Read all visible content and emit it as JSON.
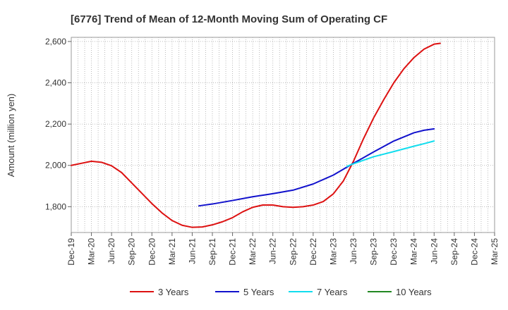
{
  "chart_data": {
    "type": "line",
    "title": "[6776]  Trend of Mean of 12-Month Moving Sum of Operating CF",
    "xlabel": "",
    "ylabel": "Amount (million yen)",
    "ylim": [
      1675,
      2620
    ],
    "yticks": [
      1800,
      2000,
      2200,
      2400,
      2600
    ],
    "ytick_labels": [
      "1,800",
      "2,000",
      "2,200",
      "2,400",
      "2,600"
    ],
    "x_categories": [
      "Dec-19",
      "Mar-20",
      "Jun-20",
      "Sep-20",
      "Dec-20",
      "Mar-21",
      "Jun-21",
      "Sep-21",
      "Dec-21",
      "Mar-22",
      "Jun-22",
      "Sep-22",
      "Dec-22",
      "Mar-23",
      "Jun-23",
      "Sep-23",
      "Dec-23",
      "Mar-24",
      "Jun-24",
      "Sep-24",
      "Dec-24",
      "Mar-25"
    ],
    "grid": true,
    "legend_position": "bottom",
    "series": [
      {
        "name": "3 Years",
        "color": "#dd1111",
        "points": [
          [
            0,
            2000
          ],
          [
            0.5,
            2010
          ],
          [
            1,
            2020
          ],
          [
            1.5,
            2015
          ],
          [
            2,
            1998
          ],
          [
            2.5,
            1965
          ],
          [
            3,
            1915
          ],
          [
            3.5,
            1865
          ],
          [
            4,
            1815
          ],
          [
            4.5,
            1770
          ],
          [
            5,
            1733
          ],
          [
            5.5,
            1710
          ],
          [
            6,
            1700
          ],
          [
            6.5,
            1702
          ],
          [
            7,
            1712
          ],
          [
            7.5,
            1727
          ],
          [
            8,
            1747
          ],
          [
            8.5,
            1775
          ],
          [
            9,
            1797
          ],
          [
            9.5,
            1808
          ],
          [
            10,
            1808
          ],
          [
            10.5,
            1800
          ],
          [
            11,
            1797
          ],
          [
            11.5,
            1800
          ],
          [
            12,
            1808
          ],
          [
            12.5,
            1825
          ],
          [
            13,
            1862
          ],
          [
            13.5,
            1925
          ],
          [
            14,
            2020
          ],
          [
            14.5,
            2130
          ],
          [
            15,
            2230
          ],
          [
            15.5,
            2318
          ],
          [
            16,
            2400
          ],
          [
            16.5,
            2468
          ],
          [
            17,
            2522
          ],
          [
            17.5,
            2563
          ],
          [
            18,
            2587
          ],
          [
            18.3,
            2591
          ]
        ]
      },
      {
        "name": "5 Years",
        "color": "#1111cc",
        "points": [
          [
            6.333,
            1804
          ],
          [
            7,
            1813
          ],
          [
            8,
            1830
          ],
          [
            9,
            1848
          ],
          [
            10,
            1863
          ],
          [
            11,
            1880
          ],
          [
            12,
            1910
          ],
          [
            13,
            1953
          ],
          [
            14,
            2010
          ],
          [
            15,
            2065
          ],
          [
            16,
            2118
          ],
          [
            17,
            2158
          ],
          [
            17.5,
            2170
          ],
          [
            18,
            2177
          ]
        ]
      },
      {
        "name": "7 Years",
        "color": "#11ddee",
        "points": [
          [
            13.667,
            1995
          ],
          [
            14,
            2008
          ],
          [
            15,
            2042
          ],
          [
            16,
            2067
          ],
          [
            17,
            2093
          ],
          [
            17.5,
            2105
          ],
          [
            18,
            2118
          ]
        ]
      },
      {
        "name": "10 Years",
        "color": "#228822",
        "points": []
      }
    ]
  }
}
